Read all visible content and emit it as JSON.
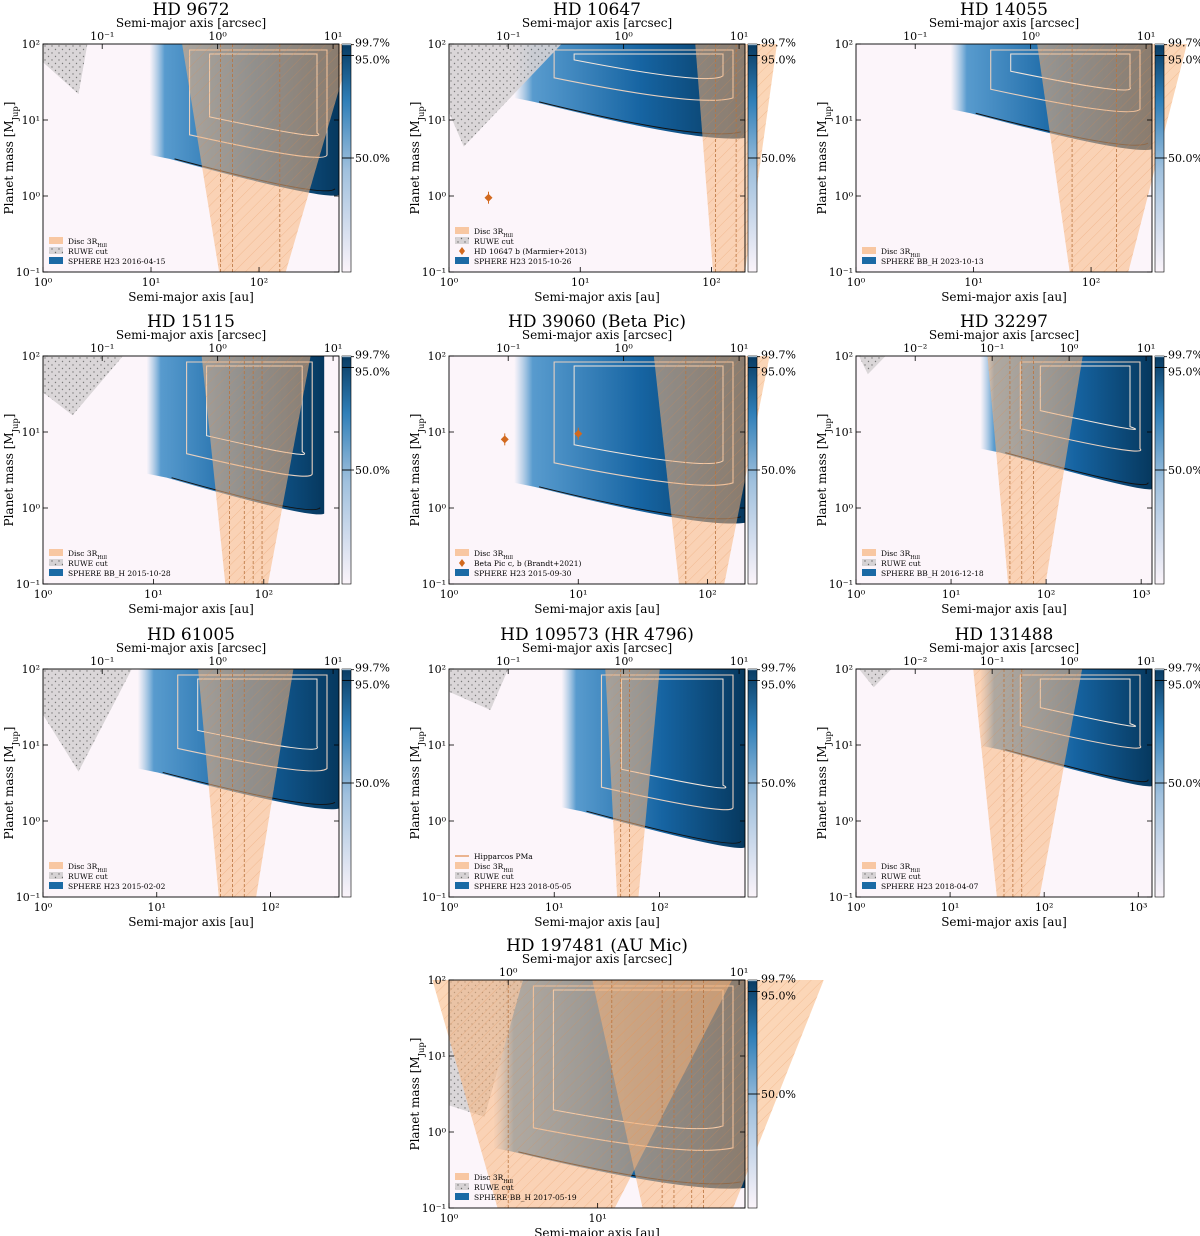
{
  "figure": {
    "common": {
      "xlabel": "Semi-major axis [au]",
      "ylabel": "Planet mass [M_Jup]",
      "top_xlabel": "Semi-major axis [arcsec]",
      "ylim": [
        0.1,
        100
      ],
      "yticks": [
        "10⁻¹",
        "10⁰",
        "10¹",
        "10²"
      ],
      "colorbar_ticks": [
        "99.7%",
        "95.0%",
        "50.0%"
      ],
      "colorbar_values": [
        99.7,
        95.0,
        50.0
      ]
    }
  },
  "chart_data": [
    {
      "type": "heatmap",
      "title": "HD 9672",
      "xlim": [
        1,
        550
      ],
      "xticks_au": [
        1,
        10,
        100
      ],
      "xtick_labels": [
        "10⁰",
        "10¹",
        "10²"
      ],
      "top_xticks_arcsec": [
        "10⁻¹",
        "10⁰",
        "10¹"
      ],
      "legend": [
        "Disc 3R_Hill",
        "RUWE cut",
        "SPHERE H23 2016-04-15"
      ],
      "planets": []
    },
    {
      "type": "heatmap",
      "title": "HD 10647",
      "xlim": [
        1,
        180
      ],
      "xticks_au": [
        1,
        10,
        100
      ],
      "xtick_labels": [
        "10⁰",
        "10¹",
        "10²"
      ],
      "top_xticks_arcsec": [
        "10⁻¹",
        "10⁰",
        "10¹"
      ],
      "legend": [
        "Disc 3R_Hill",
        "RUWE cut",
        "HD 10647 b (Marmier+2013)",
        "SPHERE H23 2015-10-26"
      ],
      "planets": [
        {
          "a_au": 2.0,
          "mass_mjup": 0.95
        }
      ]
    },
    {
      "type": "heatmap",
      "title": "HD 14055",
      "xlim": [
        1,
        330
      ],
      "xticks_au": [
        1,
        10,
        100
      ],
      "xtick_labels": [
        "10⁰",
        "10¹",
        "10²"
      ],
      "top_xticks_arcsec": [
        "10⁻¹",
        "10⁰",
        "10¹"
      ],
      "legend": [
        "Disc 3R_Hill",
        "SPHERE BB_H 2023-10-13"
      ],
      "planets": []
    },
    {
      "type": "heatmap",
      "title": "HD 15115",
      "xlim": [
        1,
        480
      ],
      "xticks_au": [
        1,
        10,
        100
      ],
      "xtick_labels": [
        "10⁰",
        "10¹",
        "10²"
      ],
      "top_xticks_arcsec": [
        "10⁻¹",
        "10⁰",
        "10¹"
      ],
      "legend": [
        "Disc 3R_Hill",
        "RUWE cut",
        "SPHERE BB_H 2015-10-28"
      ],
      "planets": []
    },
    {
      "type": "heatmap",
      "title": "HD 39060 (Beta Pic)",
      "xlim": [
        1,
        195
      ],
      "xticks_au": [
        1,
        10,
        100
      ],
      "xtick_labels": [
        "10⁰",
        "10¹",
        "10²"
      ],
      "top_xticks_arcsec": [
        "10⁻¹",
        "10⁰",
        "10¹"
      ],
      "legend": [
        "Disc 3R_Hill",
        "Beta Pic c, b (Brandt+2021)",
        "SPHERE H23 2015-09-30"
      ],
      "planets": [
        {
          "a_au": 2.7,
          "mass_mjup": 8.0
        },
        {
          "a_au": 10.0,
          "mass_mjup": 9.5
        }
      ]
    },
    {
      "type": "heatmap",
      "title": "HD 32297",
      "xlim": [
        1,
        1300
      ],
      "xticks_au": [
        1,
        10,
        100,
        1000
      ],
      "xtick_labels": [
        "10⁰",
        "10¹",
        "10²",
        "10³"
      ],
      "top_xticks_arcsec": [
        "10⁻²",
        "10⁻¹",
        "10⁰",
        "10¹"
      ],
      "legend": [
        "Disc 3R_Hill",
        "RUWE cut",
        "SPHERE BB_H 2016-12-18"
      ],
      "planets": []
    },
    {
      "type": "heatmap",
      "title": "HD 61005",
      "xlim": [
        1,
        400
      ],
      "xticks_au": [
        1,
        10,
        100
      ],
      "xtick_labels": [
        "10⁰",
        "10¹",
        "10²"
      ],
      "top_xticks_arcsec": [
        "10⁻¹",
        "10⁰",
        "10¹"
      ],
      "legend": [
        "Disc 3R_Hill",
        "RUWE cut",
        "SPHERE H23 2015-02-02"
      ],
      "planets": []
    },
    {
      "type": "heatmap",
      "title": "HD 109573 (HR 4796)",
      "xlim": [
        1,
        650
      ],
      "xticks_au": [
        1,
        10,
        100
      ],
      "xtick_labels": [
        "10⁰",
        "10¹",
        "10²"
      ],
      "top_xticks_arcsec": [
        "10⁻¹",
        "10⁰",
        "10¹"
      ],
      "legend": [
        "Hipparcos PMa",
        "Disc 3R_Hill",
        "RUWE cut",
        "SPHERE H23 2018-05-05"
      ],
      "planets": []
    },
    {
      "type": "heatmap",
      "title": "HD 131488",
      "xlim": [
        1,
        1400
      ],
      "xticks_au": [
        1,
        10,
        100,
        1000
      ],
      "xtick_labels": [
        "10⁰",
        "10¹",
        "10²",
        "10³"
      ],
      "top_xticks_arcsec": [
        "10⁻²",
        "10⁻¹",
        "10⁰",
        "10¹"
      ],
      "legend": [
        "Disc 3R_Hill",
        "RUWE cut",
        "SPHERE H23 2018-04-07"
      ],
      "planets": []
    },
    {
      "type": "heatmap",
      "title": "HD 197481 (AU Mic)",
      "xlim": [
        1,
        98
      ],
      "xticks_au": [
        1,
        10
      ],
      "xtick_labels": [
        "10⁰",
        "10¹"
      ],
      "top_xticks_arcsec": [
        "10⁰",
        "10¹"
      ],
      "legend": [
        "Disc 3R_Hill",
        "RUWE cut",
        "SPHERE BB_H 2017-05-19"
      ],
      "planets": []
    }
  ]
}
